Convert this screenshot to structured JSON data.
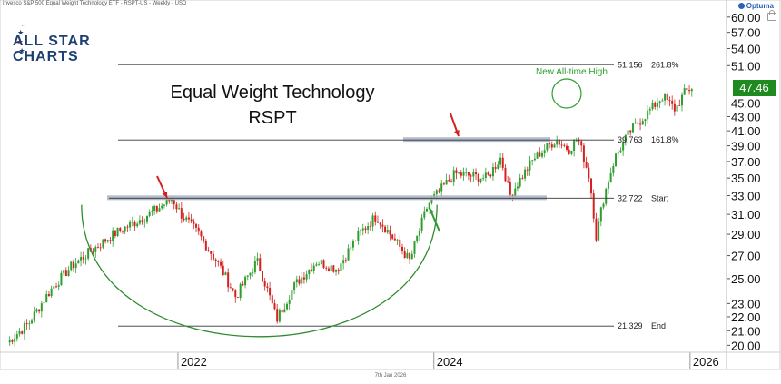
{
  "header": {
    "instrument": "Invesco S&P 500 Equal Weight Technology ETF - RSPT-US - Weekly - USD",
    "brand": "Optuma"
  },
  "logo": {
    "line1": "ALL STAR",
    "line2": "CHARTS"
  },
  "footer": {
    "date": "7th Jan 2026"
  },
  "colors": {
    "up": "#2e9e2e",
    "down": "#d62020",
    "arc": "#2e8b2e",
    "band": "#a8b2c2",
    "level": "#333333",
    "badge": "#1f8a1f"
  },
  "chart_data": {
    "type": "candlestick",
    "title": "Equal Weight Technology",
    "subtitle": "RSPT",
    "x_ticks": [
      "2022",
      "2024",
      "2026"
    ],
    "y_ticks": [
      20.0,
      21.0,
      22.0,
      23.0,
      25.0,
      27.0,
      29.0,
      31.0,
      33.0,
      35.0,
      37.0,
      39.0,
      41.0,
      43.0,
      45.0,
      51.0,
      54.0,
      57.0,
      60.0
    ],
    "y_tick_labels": [
      "20.00",
      "21.00",
      "22.00",
      "23.00",
      "25.00",
      "27.00",
      "29.00",
      "31.00",
      "33.00",
      "35.00",
      "37.00",
      "39.00",
      "41.00",
      "43.00",
      "45.00",
      "51.00",
      "54.00",
      "57.00",
      "60.00"
    ],
    "ylim": [
      19.6,
      62.0
    ],
    "y_scale": "log",
    "last_price": "47.46",
    "levels": [
      {
        "price": "51.156",
        "label": "261.8%"
      },
      {
        "price": "39.763",
        "label": "161.8%"
      },
      {
        "price": "32.722",
        "label": "Start"
      },
      {
        "price": "21.329",
        "label": "End"
      }
    ],
    "annotations": [
      "New All-time High"
    ],
    "price_path": [
      [
        "2020-09-01",
        20.2
      ],
      [
        "2020-11-01",
        21.5
      ],
      [
        "2021-01-01",
        24.0
      ],
      [
        "2021-03-01",
        26.0
      ],
      [
        "2021-05-01",
        27.5
      ],
      [
        "2021-07-01",
        29.0
      ],
      [
        "2021-09-01",
        30.2
      ],
      [
        "2021-11-01",
        31.5
      ],
      [
        "2021-12-15",
        32.7
      ],
      [
        "2022-01-10",
        31.0
      ],
      [
        "2022-03-01",
        29.0
      ],
      [
        "2022-05-01",
        26.0
      ],
      [
        "2022-06-15",
        23.5
      ],
      [
        "2022-08-15",
        26.5
      ],
      [
        "2022-10-10",
        21.8
      ],
      [
        "2022-12-01",
        24.5
      ],
      [
        "2023-02-01",
        26.5
      ],
      [
        "2023-04-01",
        25.8
      ],
      [
        "2023-06-01",
        29.0
      ],
      [
        "2023-07-20",
        30.8
      ],
      [
        "2023-10-25",
        26.5
      ],
      [
        "2023-12-15",
        32.0
      ],
      [
        "2024-03-01",
        35.5
      ],
      [
        "2024-06-01",
        35.0
      ],
      [
        "2024-07-10",
        37.5
      ],
      [
        "2024-08-05",
        33.0
      ],
      [
        "2024-10-15",
        37.5
      ],
      [
        "2024-12-15",
        39.8
      ],
      [
        "2025-01-20",
        38.5
      ],
      [
        "2025-02-15",
        40.0
      ],
      [
        "2025-03-20",
        35.0
      ],
      [
        "2025-04-08",
        28.8
      ],
      [
        "2025-05-01",
        33.0
      ],
      [
        "2025-06-01",
        37.5
      ],
      [
        "2025-07-15",
        41.0
      ],
      [
        "2025-09-01",
        43.5
      ],
      [
        "2025-10-15",
        46.0
      ],
      [
        "2025-11-20",
        44.0
      ],
      [
        "2025-12-15",
        46.5
      ],
      [
        "2026-01-07",
        47.46
      ]
    ]
  }
}
